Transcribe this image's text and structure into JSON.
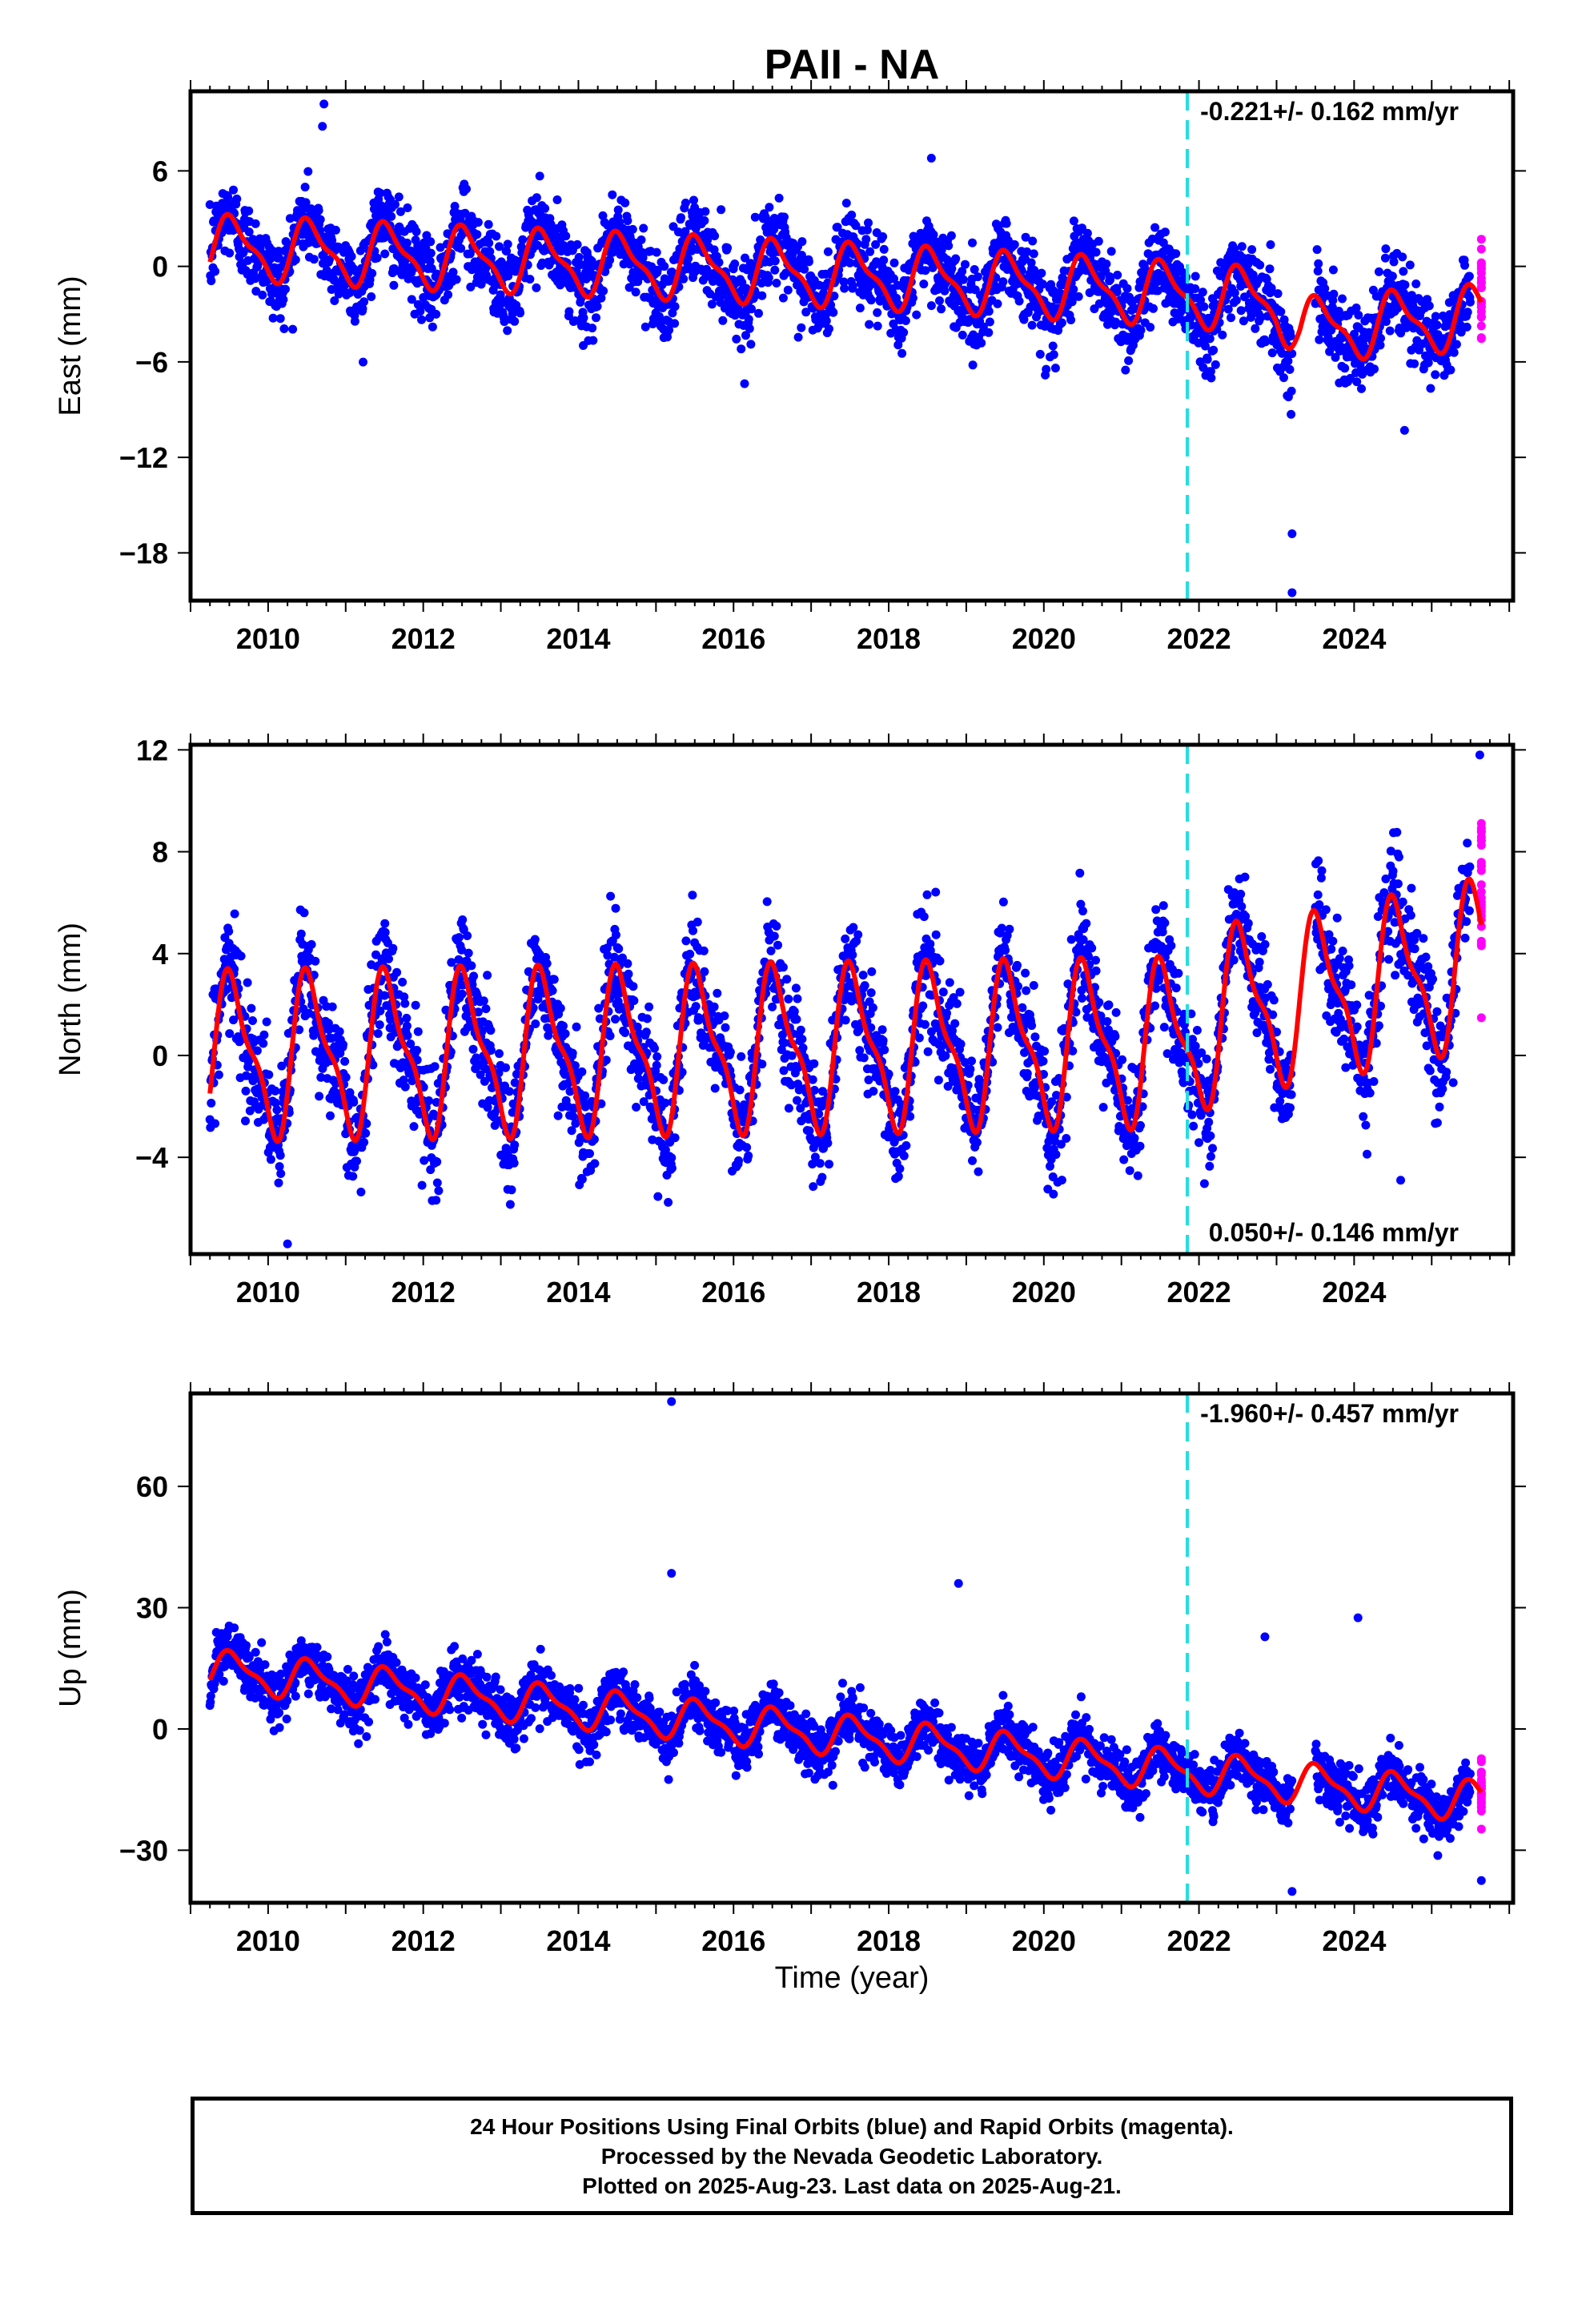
{
  "title": "PAII - NA",
  "xlabel": "Time (year)",
  "colors": {
    "final_points": "#0000ff",
    "rapid_points": "#ff00ff",
    "model_curve": "#ff0000",
    "event_line": "#22dde0"
  },
  "chart_data": [
    {
      "type": "scatter",
      "panel": "east",
      "ylabel": "East (mm)",
      "rate_label": "-0.221+/- 0.162 mm/yr",
      "rate_position": "top-right",
      "xlim": [
        2009.0,
        2026.05
      ],
      "ylim": [
        -21,
        11
      ],
      "xticks": [
        2010,
        2012,
        2014,
        2016,
        2018,
        2020,
        2022,
        2024
      ],
      "yticks": [
        6,
        0,
        -6,
        -12,
        -18
      ],
      "ytick_labels": [
        "6",
        "0",
        "−6",
        "−12",
        "−18"
      ],
      "event_line_x": 2021.85,
      "data_start": 2009.25,
      "data_end": 2025.64,
      "gap": [
        2023.2,
        2023.5
      ],
      "rapid_segment": [
        2025.5,
        2025.64
      ],
      "trend_points": [
        [
          2009.3,
          1.2
        ],
        [
          2012.0,
          0.6
        ],
        [
          2015.0,
          0.0
        ],
        [
          2018.0,
          -0.7
        ],
        [
          2021.0,
          -1.5
        ],
        [
          2023.0,
          -2.2
        ],
        [
          2023.3,
          -4.0
        ],
        [
          2025.6,
          -3.2
        ]
      ],
      "annual_amplitude": 1.8,
      "scatter_sd": 1.3,
      "outliers": [
        [
          2010.72,
          10.2
        ],
        [
          2010.7,
          8.8
        ],
        [
          2018.55,
          6.8
        ],
        [
          2023.2,
          -16.8
        ],
        [
          2023.2,
          -20.5
        ],
        [
          2024.65,
          -10.3
        ]
      ]
    },
    {
      "type": "scatter",
      "panel": "north",
      "ylabel": "North (mm)",
      "rate_label": "0.050+/- 0.146 mm/yr",
      "rate_position": "bottom-right",
      "xlim": [
        2009.0,
        2026.05
      ],
      "ylim": [
        -7.8,
        12.2
      ],
      "xticks": [
        2010,
        2012,
        2014,
        2016,
        2018,
        2020,
        2022,
        2024
      ],
      "yticks": [
        12,
        8,
        4,
        0,
        -4
      ],
      "ytick_labels": [
        "12",
        "8",
        "4",
        "0",
        "−4"
      ],
      "event_line_x": 2021.85,
      "data_start": 2009.25,
      "data_end": 2025.64,
      "gap": [
        2023.2,
        2023.5
      ],
      "rapid_segment": [
        2025.5,
        2025.64
      ],
      "trend_points": [
        [
          2009.3,
          0.0
        ],
        [
          2015.0,
          0.2
        ],
        [
          2021.85,
          0.5
        ],
        [
          2022.3,
          1.8
        ],
        [
          2023.5,
          2.3
        ],
        [
          2025.6,
          3.6
        ]
      ],
      "annual_amplitude": 2.9,
      "scatter_sd": 1.1,
      "outliers": [
        [
          2010.25,
          -7.4
        ],
        [
          2024.6,
          -4.9
        ],
        [
          2025.62,
          11.8
        ]
      ]
    },
    {
      "type": "scatter",
      "panel": "up",
      "ylabel": "Up (mm)",
      "rate_label": "-1.960+/- 0.457 mm/yr",
      "rate_position": "top-right",
      "xlim": [
        2009.0,
        2026.05
      ],
      "ylim": [
        -43,
        83
      ],
      "xticks": [
        2010,
        2012,
        2014,
        2016,
        2018,
        2020,
        2022,
        2024
      ],
      "yticks": [
        60,
        30,
        0,
        -30
      ],
      "ytick_labels": [
        "60",
        "30",
        "0",
        "−30"
      ],
      "event_line_x": 2021.85,
      "data_start": 2009.25,
      "data_end": 2025.64,
      "gap": [
        2023.2,
        2023.5
      ],
      "rapid_segment": [
        2025.5,
        2025.64
      ],
      "trend_points": [
        [
          2009.3,
          14.5
        ],
        [
          2025.6,
          -18.0
        ]
      ],
      "annual_amplitude": 4.5,
      "scatter_sd": 3.2,
      "outliers": [
        [
          2015.2,
          81.0
        ],
        [
          2015.2,
          38.5
        ],
        [
          2018.9,
          36.0
        ],
        [
          2022.85,
          22.8
        ],
        [
          2024.05,
          27.5
        ],
        [
          2023.2,
          -40.2
        ],
        [
          2025.64,
          -37.5
        ]
      ]
    }
  ],
  "footer": {
    "line1": "24 Hour Positions Using Final Orbits (blue) and Rapid Orbits (magenta).",
    "line2": "Processed by the Nevada Geodetic Laboratory.",
    "line3": "Plotted on 2025-Aug-23. Last data on 2025-Aug-21."
  }
}
